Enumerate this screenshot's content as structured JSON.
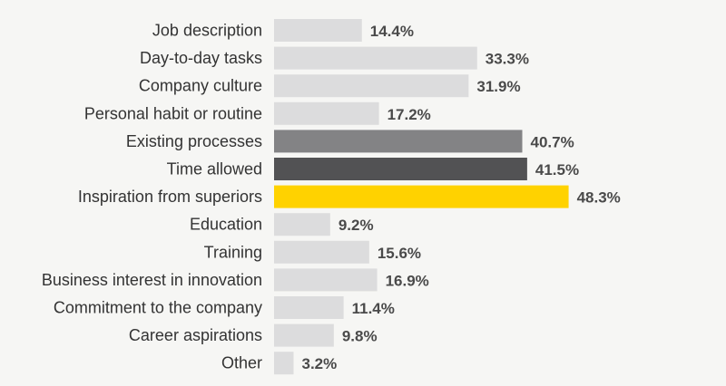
{
  "chart_data": {
    "type": "bar",
    "orientation": "horizontal",
    "title": "",
    "xlabel": "",
    "ylabel": "",
    "xlim": [
      0,
      50
    ],
    "grid": false,
    "legend": "none",
    "categories": [
      "Job description",
      "Day-to-day tasks",
      "Company culture",
      "Personal habit or routine",
      "Existing processes",
      "Time allowed",
      "Inspiration from superiors",
      "Education",
      "Training",
      "Business interest in innovation",
      "Commitment to the company",
      "Career aspirations",
      "Other"
    ],
    "values": [
      14.4,
      33.3,
      31.9,
      17.2,
      40.7,
      41.5,
      48.3,
      9.2,
      15.6,
      16.9,
      11.4,
      9.8,
      3.2
    ],
    "value_labels": [
      "14.4%",
      "33.3%",
      "31.9%",
      "17.2%",
      "40.7%",
      "41.5%",
      "48.3%",
      "9.2%",
      "15.6%",
      "16.9%",
      "11.4%",
      "9.8%",
      "3.2%"
    ],
    "colors": {
      "background": "#f6f6f4",
      "default_bar": "#dcdcdd",
      "highlight": {
        "Existing processes": "#838385",
        "Time allowed": "#525254",
        "Inspiration from superiors": "#ffd200"
      },
      "category_text": "#333333",
      "value_text": "#4a4a4a"
    }
  }
}
